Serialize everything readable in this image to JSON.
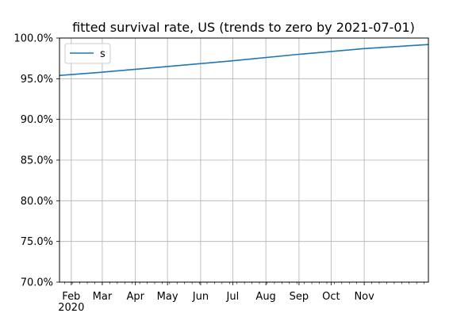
{
  "chart_data": {
    "type": "line",
    "title": "fitted survival rate, US (trends to zero by 2021-07-01)",
    "xlabel": "",
    "ylabel": "",
    "x_range": [
      "2020-01-21",
      "2020-12-31"
    ],
    "ylim": [
      70.0,
      100.0
    ],
    "y_unit": "%",
    "y_ticks": [
      70.0,
      75.0,
      80.0,
      85.0,
      90.0,
      95.0,
      100.0
    ],
    "y_tick_labels": [
      "70.0%",
      "75.0%",
      "80.0%",
      "85.0%",
      "90.0%",
      "95.0%",
      "100.0%"
    ],
    "x_ticks": [
      "2020-02-01",
      "2020-03-01",
      "2020-04-01",
      "2020-05-01",
      "2020-06-01",
      "2020-07-01",
      "2020-08-01",
      "2020-09-01",
      "2020-10-01",
      "2020-11-01"
    ],
    "x_tick_labels": [
      "Feb",
      "Mar",
      "Apr",
      "May",
      "Jun",
      "Jul",
      "Aug",
      "Sep",
      "Oct",
      "Nov"
    ],
    "x_year_label": "2020",
    "grid": true,
    "legend_position": "top-left",
    "series": [
      {
        "name": "s",
        "color": "#1f77b4",
        "x": [
          "2020-01-21",
          "2020-03-01",
          "2020-05-01",
          "2020-07-01",
          "2020-09-01",
          "2020-11-01",
          "2020-12-31"
        ],
        "y": [
          95.4,
          95.8,
          96.5,
          97.2,
          98.0,
          98.7,
          99.2
        ]
      }
    ]
  }
}
